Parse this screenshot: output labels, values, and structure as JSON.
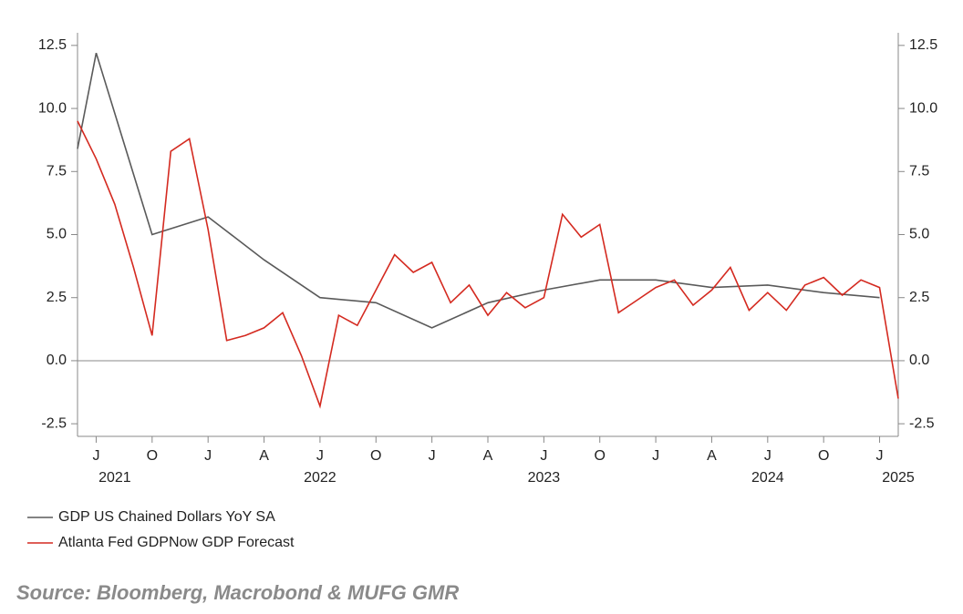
{
  "chart_data": {
    "type": "line",
    "source": "Source: Bloomberg, Macrobond & MUFG GMR",
    "xlim": [
      "2021-06",
      "2025-02"
    ],
    "xticks": [
      {
        "value": "2021-07",
        "label": "J"
      },
      {
        "value": "2021-10",
        "label": "O"
      },
      {
        "value": "2022-01",
        "label": "J"
      },
      {
        "value": "2022-04",
        "label": "A"
      },
      {
        "value": "2022-07",
        "label": "J"
      },
      {
        "value": "2022-10",
        "label": "O"
      },
      {
        "value": "2023-01",
        "label": "J"
      },
      {
        "value": "2023-04",
        "label": "A"
      },
      {
        "value": "2023-07",
        "label": "J"
      },
      {
        "value": "2023-10",
        "label": "O"
      },
      {
        "value": "2024-01",
        "label": "J"
      },
      {
        "value": "2024-04",
        "label": "A"
      },
      {
        "value": "2024-07",
        "label": "J"
      },
      {
        "value": "2024-10",
        "label": "O"
      },
      {
        "value": "2025-01",
        "label": "J"
      }
    ],
    "year_labels": [
      {
        "value": "2021-08",
        "label": "2021"
      },
      {
        "value": "2022-07",
        "label": "2022"
      },
      {
        "value": "2023-07",
        "label": "2023"
      },
      {
        "value": "2024-07",
        "label": "2024"
      },
      {
        "value": "2025-02",
        "label": "2025"
      }
    ],
    "ylim": [
      -3,
      13
    ],
    "yticks": [
      -2.5,
      {
        "value": 0,
        "label": "0.0"
      },
      2.5,
      {
        "value": 5,
        "label": "5.0"
      },
      7.5,
      {
        "value": 10,
        "label": "10.0"
      },
      12.5
    ],
    "y2lim": [
      -3,
      13
    ],
    "y2ticks": [
      -2.5,
      {
        "value": 0,
        "label": "0.0"
      },
      2.5,
      {
        "value": 5,
        "label": "5.0"
      },
      7.5,
      {
        "value": 10,
        "label": "10.0"
      },
      12.5
    ],
    "zero_line": true,
    "series": [
      {
        "name": "GDP US Chained Dollars YoY SA",
        "color": "#5a5a5a",
        "x": [
          "2021-06",
          "2021-07",
          "2021-10",
          "2022-01",
          "2022-04",
          "2022-07",
          "2022-10",
          "2023-01",
          "2023-04",
          "2023-07",
          "2023-10",
          "2024-01",
          "2024-04",
          "2024-07",
          "2024-10",
          "2025-01"
        ],
        "values": [
          8.4,
          12.2,
          5.0,
          5.7,
          4.0,
          2.5,
          2.3,
          1.3,
          2.3,
          2.8,
          3.2,
          3.2,
          2.9,
          3.0,
          2.7,
          2.5
        ]
      },
      {
        "name": "Atlanta Fed GDPNow GDP Forecast",
        "color": "#d42a20",
        "x": [
          "2021-06",
          "2021-07",
          "2021-08",
          "2021-09",
          "2021-10",
          "2021-11",
          "2021-12",
          "2022-01",
          "2022-02",
          "2022-03",
          "2022-04",
          "2022-05",
          "2022-06",
          "2022-07",
          "2022-08",
          "2022-09",
          "2022-10",
          "2022-11",
          "2022-12",
          "2023-01",
          "2023-02",
          "2023-03",
          "2023-04",
          "2023-05",
          "2023-06",
          "2023-07",
          "2023-08",
          "2023-09",
          "2023-10",
          "2023-11",
          "2023-12",
          "2024-01",
          "2024-02",
          "2024-03",
          "2024-04",
          "2024-05",
          "2024-06",
          "2024-07",
          "2024-08",
          "2024-09",
          "2024-10",
          "2024-11",
          "2024-12",
          "2025-01",
          "2025-02"
        ],
        "values": [
          9.5,
          8.0,
          6.2,
          3.7,
          1.0,
          8.3,
          8.8,
          5.2,
          0.8,
          1.0,
          1.3,
          1.9,
          0.2,
          -1.8,
          1.8,
          1.4,
          2.8,
          4.2,
          3.5,
          3.9,
          2.3,
          3.0,
          1.8,
          2.7,
          2.1,
          2.5,
          5.8,
          4.9,
          5.4,
          1.9,
          2.4,
          2.9,
          3.2,
          2.2,
          2.8,
          3.7,
          2.0,
          2.7,
          2.0,
          3.0,
          3.3,
          2.6,
          3.2,
          2.9,
          -1.5
        ]
      }
    ]
  }
}
